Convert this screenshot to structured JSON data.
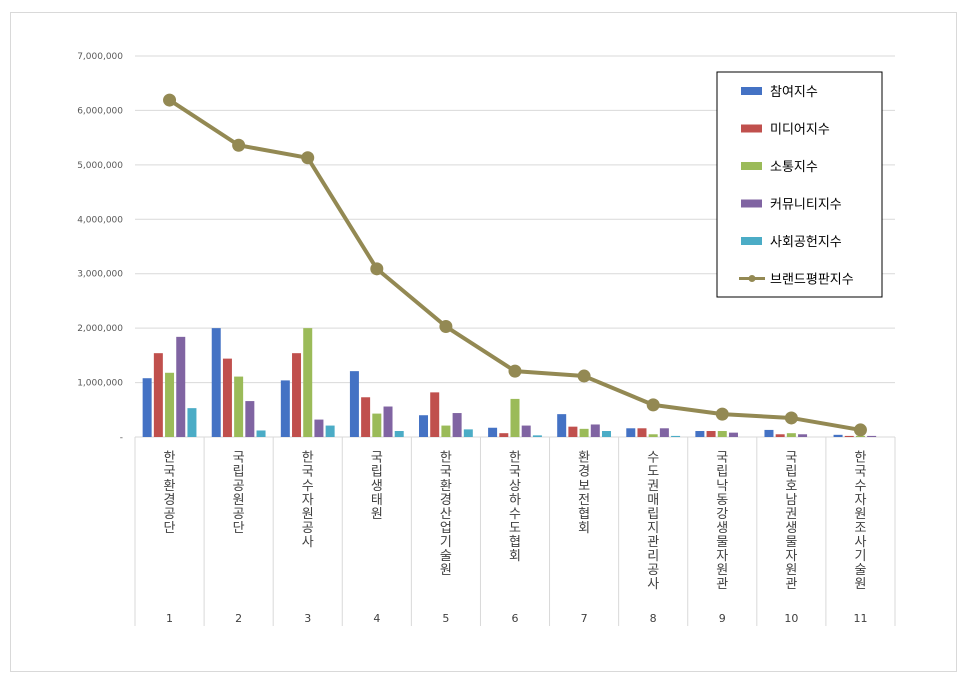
{
  "chart_data": {
    "type": "bar",
    "title": "",
    "xlabel": "",
    "ylabel": "",
    "ylim": [
      0,
      7000000
    ],
    "yticks": [
      "-",
      "1,000,000",
      "2,000,000",
      "3,000,000",
      "4,000,000",
      "5,000,000",
      "6,000,000",
      "7,000,000"
    ],
    "grid": true,
    "legend": "top-right",
    "categories": [
      "한국환경공단",
      "국립공원공단",
      "한국수자원공사",
      "국립생태원",
      "한국환경산업기술원",
      "한국상하수도협회",
      "환경보전협회",
      "수도권매립지관리공사",
      "국립낙동강생물자원관",
      "국립호남권생물자원관",
      "한국수자원조사기술원"
    ],
    "ranks": [
      "1",
      "2",
      "3",
      "4",
      "5",
      "6",
      "7",
      "8",
      "9",
      "10",
      "11"
    ],
    "series": [
      {
        "name": "참여지수",
        "color": "#4472c4",
        "kind": "bar",
        "values": [
          1080000,
          2000000,
          1040000,
          1210000,
          400000,
          170000,
          420000,
          160000,
          110000,
          130000,
          40000
        ]
      },
      {
        "name": "미디어지수",
        "color": "#c0504d",
        "kind": "bar",
        "values": [
          1540000,
          1440000,
          1540000,
          730000,
          820000,
          70000,
          190000,
          160000,
          110000,
          50000,
          20000
        ]
      },
      {
        "name": "소통지수",
        "color": "#9bbb59",
        "kind": "bar",
        "values": [
          1180000,
          1110000,
          2000000,
          430000,
          210000,
          700000,
          150000,
          50000,
          110000,
          70000,
          20000
        ]
      },
      {
        "name": "커뮤니티지수",
        "color": "#8064a2",
        "kind": "bar",
        "values": [
          1840000,
          660000,
          320000,
          560000,
          440000,
          210000,
          230000,
          160000,
          80000,
          50000,
          20000
        ]
      },
      {
        "name": "사회공헌지수",
        "color": "#4bacc6",
        "kind": "bar",
        "values": [
          530000,
          120000,
          210000,
          110000,
          140000,
          30000,
          110000,
          20000,
          0,
          0,
          0
        ]
      },
      {
        "name": "브랜드평판지수",
        "color": "#938953",
        "kind": "line",
        "values": [
          6190000,
          5360000,
          5130000,
          3090000,
          2030000,
          1210000,
          1120000,
          590000,
          420000,
          350000,
          130000
        ]
      }
    ]
  }
}
